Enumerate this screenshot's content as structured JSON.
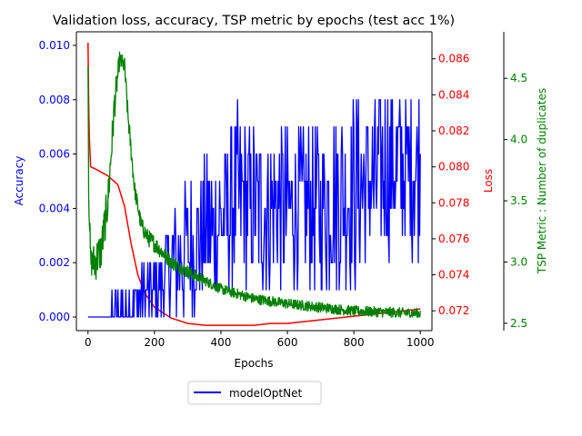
{
  "chart_data": {
    "type": "line",
    "title": "Validation loss, accuracy, TSP metric by epochs (test acc 1%)",
    "xlabel": "Epochs",
    "xlim": [
      -35,
      1035
    ],
    "xticks": [
      0,
      200,
      400,
      600,
      800,
      1000
    ],
    "legend": {
      "placement": "bottom-center",
      "entries": [
        "modelOptNet"
      ]
    },
    "axes": {
      "accuracy": {
        "label": "Accuracy",
        "color": "#0000ff",
        "side": "left",
        "ylim": [
          -0.0005,
          0.0105
        ],
        "ticks": [
          "0.000",
          "0.002",
          "0.004",
          "0.006",
          "0.008",
          "0.010"
        ],
        "tick_values": [
          0,
          0.002,
          0.004,
          0.006,
          0.008,
          0.01
        ]
      },
      "loss": {
        "label": "Loss",
        "color": "#ff0000",
        "side": "right",
        "ylim": [
          0.0709,
          0.0875
        ],
        "ticks": [
          "0.072",
          "0.074",
          "0.076",
          "0.078",
          "0.080",
          "0.082",
          "0.084",
          "0.086"
        ],
        "tick_values": [
          0.072,
          0.074,
          0.076,
          0.078,
          0.08,
          0.082,
          0.084,
          0.086
        ]
      },
      "tsp": {
        "label": "TSP Metric : Number of duplicates",
        "color": "#008000",
        "side": "right-outer",
        "ylim": [
          2.44,
          4.88
        ],
        "ticks": [
          "2.5",
          "3.0",
          "3.5",
          "4.0",
          "4.5"
        ],
        "tick_values": [
          2.5,
          3.0,
          3.5,
          4.0,
          4.5
        ]
      }
    },
    "series": [
      {
        "name": "modelOptNet",
        "axis": "accuracy",
        "color": "#0000ff",
        "noisy": true,
        "x": [
          0,
          50,
          150,
          200,
          260,
          300,
          340,
          400,
          450,
          500,
          600,
          700,
          750,
          800,
          900,
          1000
        ],
        "mean": [
          0.0,
          0.0,
          0.0005,
          0.001,
          0.002,
          0.0025,
          0.003,
          0.0035,
          0.0045,
          0.004,
          0.004,
          0.004,
          0.0045,
          0.0045,
          0.0055,
          0.0055
        ],
        "spread": [
          0.0,
          0.0003,
          0.0008,
          0.001,
          0.0015,
          0.002,
          0.002,
          0.0022,
          0.0022,
          0.0022,
          0.0022,
          0.0022,
          0.0025,
          0.0025,
          0.0022,
          0.0022
        ],
        "min": 0.0,
        "max": 0.009
      },
      {
        "axis": "loss",
        "color": "#ff0000",
        "noisy": false,
        "x": [
          0,
          3,
          8,
          20,
          40,
          60,
          90,
          110,
          130,
          150,
          170,
          200,
          250,
          300,
          350,
          400,
          450,
          500,
          550,
          600,
          650,
          700,
          750,
          800,
          850,
          900,
          950,
          1000
        ],
        "values": [
          0.0869,
          0.082,
          0.08,
          0.0799,
          0.0797,
          0.0795,
          0.079,
          0.0778,
          0.0757,
          0.074,
          0.073,
          0.0722,
          0.0716,
          0.0713,
          0.0712,
          0.0712,
          0.0712,
          0.0712,
          0.0713,
          0.0713,
          0.0714,
          0.0715,
          0.0716,
          0.0717,
          0.0718,
          0.0719,
          0.072,
          0.0721
        ]
      },
      {
        "axis": "tsp",
        "color": "#008000",
        "noisy": true,
        "x": [
          0,
          2,
          8,
          20,
          40,
          60,
          80,
          95,
          110,
          120,
          140,
          160,
          180,
          200,
          250,
          300,
          350,
          400,
          500,
          600,
          700,
          800,
          900,
          1000
        ],
        "mean": [
          4.6,
          3.6,
          3.0,
          3.0,
          3.1,
          3.5,
          4.3,
          4.65,
          4.6,
          4.2,
          3.6,
          3.3,
          3.2,
          3.15,
          3.0,
          2.92,
          2.85,
          2.78,
          2.7,
          2.66,
          2.63,
          2.6,
          2.59,
          2.58
        ],
        "spread": [
          0.0,
          0.1,
          0.08,
          0.12,
          0.12,
          0.12,
          0.1,
          0.05,
          0.05,
          0.06,
          0.05,
          0.05,
          0.05,
          0.05,
          0.04,
          0.04,
          0.03,
          0.03,
          0.03,
          0.03,
          0.03,
          0.03,
          0.03,
          0.03
        ],
        "min": 2.55,
        "max": 4.72
      }
    ]
  }
}
